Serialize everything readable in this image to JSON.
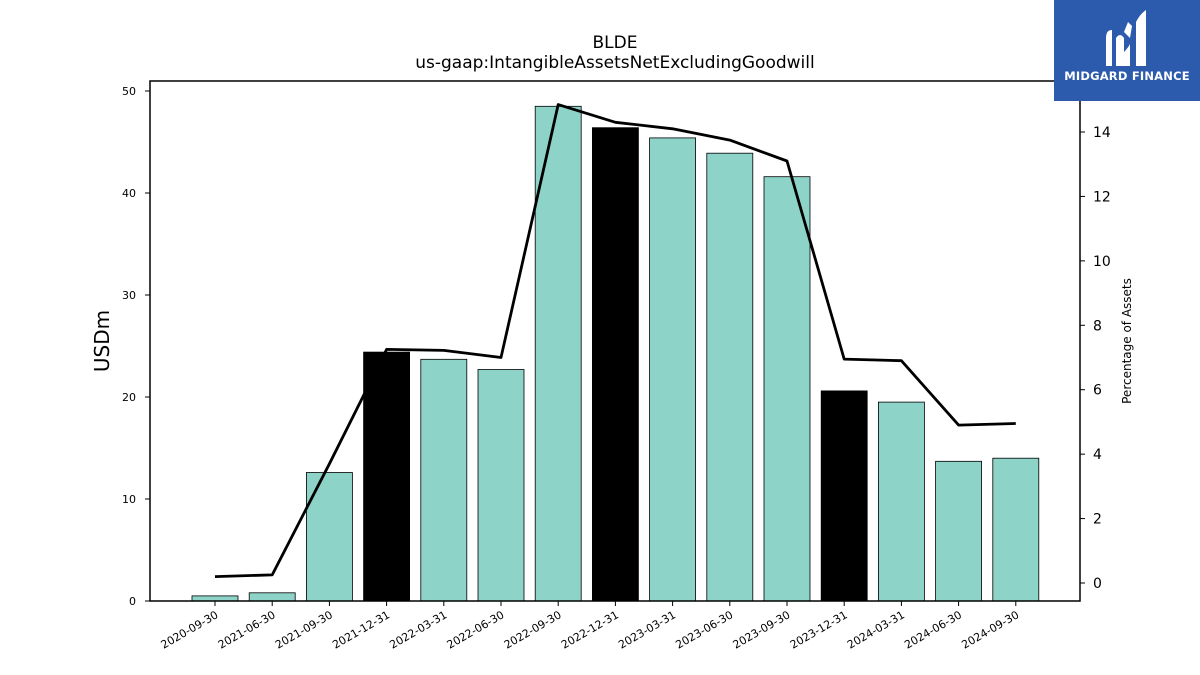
{
  "brand": {
    "name": "MIDGARD FINANCE",
    "color": "#2c5aad"
  },
  "chart_data": {
    "type": "bar",
    "title": "BLDE",
    "subtitle": "us-gaap:IntangibleAssetsNetExcludingGoodwill",
    "ylabel": "USDm",
    "y2label": "Percentage of Assets",
    "categories": [
      "2020-09-30",
      "2021-06-30",
      "2021-09-30",
      "2021-12-31",
      "2022-03-31",
      "2022-06-30",
      "2022-09-30",
      "2022-12-31",
      "2023-03-31",
      "2023-06-30",
      "2023-09-30",
      "2023-12-31",
      "2024-03-31",
      "2024-06-30",
      "2024-09-30"
    ],
    "series": [
      {
        "type": "bar",
        "axis": "left",
        "values": [
          0.5,
          0.8,
          12.6,
          24.4,
          23.7,
          22.7,
          48.5,
          46.4,
          45.4,
          43.9,
          41.6,
          20.6,
          19.5,
          13.7,
          14.0
        ],
        "colors": [
          "#8dd3c7",
          "#8dd3c7",
          "#8dd3c7",
          "#000000",
          "#8dd3c7",
          "#8dd3c7",
          "#8dd3c7",
          "#000000",
          "#8dd3c7",
          "#8dd3c7",
          "#8dd3c7",
          "#000000",
          "#8dd3c7",
          "#8dd3c7",
          "#8dd3c7"
        ]
      },
      {
        "type": "line",
        "axis": "right",
        "values": [
          0.2,
          0.25,
          3.7,
          7.25,
          7.22,
          7.0,
          14.85,
          14.3,
          14.1,
          13.75,
          13.1,
          6.95,
          6.9,
          4.9,
          4.95
        ],
        "color": "#000000"
      }
    ],
    "ylim": [
      0,
      50
    ],
    "yticks": [
      0,
      10,
      20,
      30,
      40,
      50
    ],
    "y2lim": [
      -0.55,
      16.0
    ],
    "y2ticks": [
      0,
      2,
      4,
      6,
      8,
      10,
      12,
      14
    ],
    "grid": false,
    "legend": "none"
  }
}
